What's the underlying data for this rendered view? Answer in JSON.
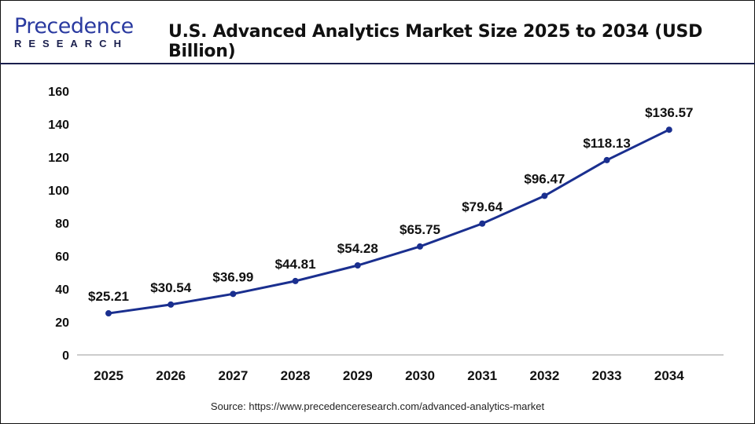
{
  "header": {
    "logo_line1": "Precedence",
    "logo_line2": "RESEARCH",
    "title": "U.S. Advanced Analytics Market Size 2025 to 2034 (USD Billion)"
  },
  "source": "Source: https://www.precedenceresearch.com/advanced-analytics-market",
  "chart_data": {
    "type": "line",
    "title": "U.S. Advanced Analytics Market Size 2025 to 2034 (USD Billion)",
    "categories": [
      "2025",
      "2026",
      "2027",
      "2028",
      "2029",
      "2030",
      "2031",
      "2032",
      "2033",
      "2034"
    ],
    "values": [
      25.21,
      30.54,
      36.99,
      44.81,
      54.28,
      65.75,
      79.64,
      96.47,
      118.13,
      136.57
    ],
    "data_labels": [
      "$25.21",
      "$30.54",
      "$36.99",
      "$44.81",
      "$54.28",
      "$65.75",
      "$79.64",
      "$96.47",
      "$118.13",
      "$136.57"
    ],
    "ylim": [
      0,
      160
    ],
    "yticks": [
      "0",
      "20",
      "40",
      "60",
      "80",
      "100",
      "120",
      "140",
      "160"
    ],
    "grid": false,
    "line_color": "#1a2f8f"
  }
}
